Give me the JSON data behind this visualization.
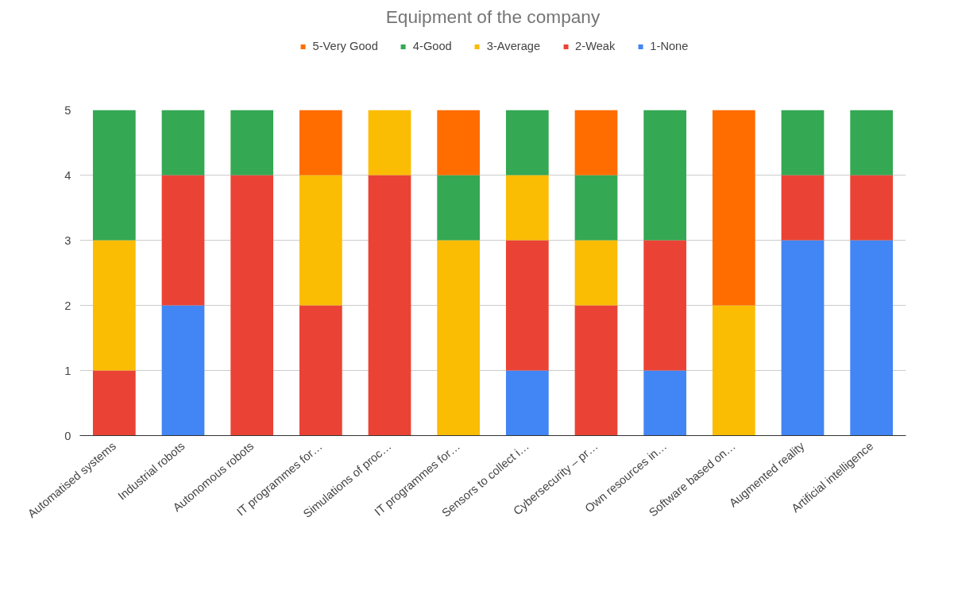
{
  "chart_data": {
    "type": "bar",
    "stacked": true,
    "title": "Equipment of the company",
    "categories": [
      "Automatised systems",
      "Industrial robots",
      "Autonomous robots",
      "IT programmes for…",
      "Simulations of proc…",
      "IT programmes for…",
      "Sensors to collect i…",
      "Cybersecurity – pr…",
      "Own resources in…",
      "Software based on…",
      "Augmented reality",
      "Artificial intelligence"
    ],
    "series": [
      {
        "name": "1-None",
        "color": "#4285f4",
        "values": [
          0,
          2,
          0,
          0,
          0,
          0,
          1,
          0,
          1,
          0,
          3,
          3
        ]
      },
      {
        "name": "2-Weak",
        "color": "#ea4335",
        "values": [
          1,
          2,
          4,
          2,
          4,
          0,
          2,
          2,
          2,
          0,
          1,
          1
        ]
      },
      {
        "name": "3-Average",
        "color": "#fbbc04",
        "values": [
          2,
          0,
          0,
          2,
          1,
          3,
          1,
          1,
          0,
          2,
          0,
          0
        ]
      },
      {
        "name": "4-Good",
        "color": "#34a853",
        "values": [
          2,
          1,
          1,
          0,
          0,
          1,
          1,
          1,
          2,
          0,
          1,
          1
        ]
      },
      {
        "name": "5-Very Good",
        "color": "#ff6d01",
        "values": [
          0,
          0,
          0,
          1,
          0,
          1,
          0,
          1,
          0,
          3,
          0,
          0
        ]
      }
    ],
    "ylim": [
      0,
      5
    ],
    "yticks": [
      0,
      1,
      2,
      3,
      4,
      5
    ],
    "grid": "y",
    "legend": "top"
  }
}
